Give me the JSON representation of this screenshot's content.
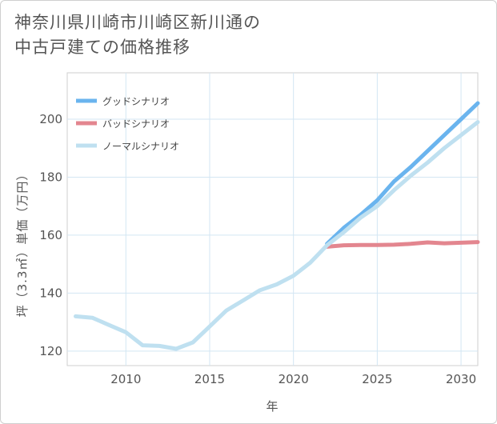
{
  "title": {
    "line1": "神奈川県川崎市川崎区新川通の",
    "line2": "中古戸建ての価格推移"
  },
  "chart_data": {
    "type": "line",
    "title": "神奈川県川崎市川崎区新川通の中古戸建ての価格推移",
    "xlabel": "年",
    "ylabel": "坪（3.3㎡）単価（万円）",
    "xlim": [
      2006.5,
      2031
    ],
    "ylim": [
      115,
      216
    ],
    "xticks": [
      2010,
      2015,
      2020,
      2025,
      2030
    ],
    "yticks": [
      120,
      140,
      160,
      180,
      200
    ],
    "grid": true,
    "legend_position": "top-left",
    "series": [
      {
        "name": "グッドシナリオ",
        "color": "#6ab4ee",
        "x": [
          2022,
          2023,
          2024,
          2025,
          2026,
          2027,
          2028,
          2029,
          2030,
          2031
        ],
        "values": [
          157.0,
          162.5,
          167.0,
          172.0,
          178.5,
          183.5,
          189.0,
          194.5,
          200.0,
          205.5
        ]
      },
      {
        "name": "バッドシナリオ",
        "color": "#e3868f",
        "x": [
          2022,
          2023,
          2024,
          2025,
          2026,
          2027,
          2028,
          2029,
          2030,
          2031
        ],
        "values": [
          156.0,
          156.5,
          156.6,
          156.6,
          156.7,
          157.0,
          157.5,
          157.2,
          157.4,
          157.6
        ]
      },
      {
        "name": "ノーマルシナリオ",
        "color": "#bfe0f0",
        "x": [
          2007,
          2008,
          2009,
          2010,
          2011,
          2012,
          2013,
          2014,
          2015,
          2016,
          2017,
          2018,
          2019,
          2020,
          2021,
          2022,
          2023,
          2024,
          2025,
          2026,
          2027,
          2028,
          2029,
          2030,
          2031
        ],
        "values": [
          132.0,
          131.5,
          129.0,
          126.5,
          122.0,
          121.8,
          120.8,
          123.0,
          128.5,
          134.0,
          137.5,
          141.0,
          143.0,
          146.0,
          150.5,
          156.5,
          161.0,
          166.0,
          170.0,
          175.5,
          180.5,
          185.0,
          190.0,
          194.5,
          199.0
        ]
      }
    ]
  }
}
